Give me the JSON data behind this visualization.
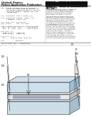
{
  "bg_color": "#ffffff",
  "text_color": "#111111",
  "title_top": "United States",
  "title_sub": "Patent Application Publication",
  "pub_number": "US 2019/0307993 A1",
  "pub_date": "Oct. 3, 2019",
  "left_texts": [
    "(54) METHOD FOR MEASURING HEMATOCRIT",
    "      VALUE OF BLOOD SAMPLE, METHOD FOR",
    "      MEASURING CONCENTRATION OF ANALYTE",
    "      IN BLOOD SAMPLE, SENSOR CHIP AND",
    "      SENSOR UNIT",
    "",
    "(71) Applicant: Corp., Osaka (JP)",
    "",
    "(72) Inventors: Tanaka; Osaka (JP),",
    "      Yamamoto; Osaka (JP)",
    "",
    "(21) Appl. No.: 16/354,022",
    "(22) Filed:     Mar. 14, 2019",
    "",
    "(30) Foreign Application Priority Data",
    "  Mar. 29, 2018  (JP) .... 2018-064301",
    "  Sep. 13, 2018  (JP) .... 2018-171941",
    "",
    "(51) Int. Cl.",
    "  A61B 5/1477   (2006.01)",
    "  G01N 27/327   (2006.01)",
    "",
    "(52) U.S. Cl.",
    "  CPC ... A61B 5/14532 (2013.01)",
    "",
    "(57)           ABSTRACT"
  ],
  "abstract_lines": [
    "A method for measuring a hematocrit",
    "value of a blood sample, includes:",
    "applying a first voltage between a",
    "working electrode and a counter",
    "electrode of a sensor chip for a",
    "first time period; measuring a first",
    "response current value; applying a",
    "second voltage; measuring a second",
    "response current value; and calcu-",
    "lating the hematocrit value. Also",
    "provided is a method for measuring",
    "a concentration of an analyte in a",
    "blood sample, a sensor chip, and a",
    "sensor unit for use in such methods.",
    "The sensor chip includes a substrate,",
    "a cover, and a spacer therebetween",
    "defining a flow path. A reaction",
    "layer on the substrate includes an",
    "enzyme and a mediator. The sensor",
    "unit includes the sensor chip and",
    "a measurement device configured to",
    "perform the measurement methods."
  ],
  "slab_top_color": "#cce0ee",
  "slab_top_right": "#a0c0d8",
  "slab_mid_color": "#e8e8e8",
  "slab_mid_right": "#c0c0c0",
  "slab_bot_color": "#ccdde8",
  "slab_bot_right": "#a8bece",
  "strip_color": "#b0b8c8",
  "edge_color": "#555555",
  "fig_width": 1.28,
  "fig_height": 1.65,
  "dpi": 100
}
